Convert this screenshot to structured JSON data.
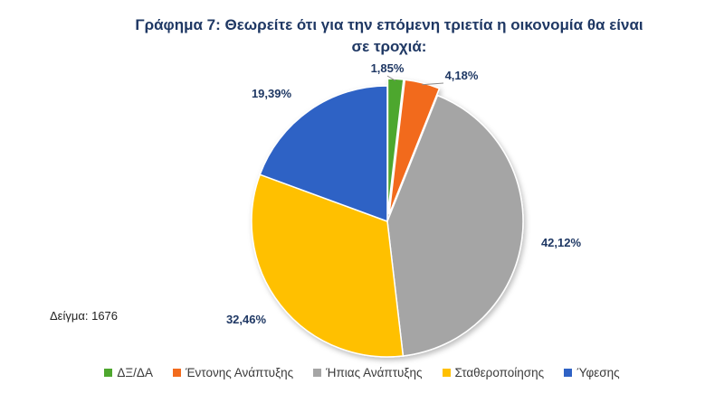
{
  "chart_data": {
    "type": "pie",
    "title": "Γράφημα 7: Θεωρείτε ότι για την επόμενη τριετία η οικονομία θα είναι σε τροχιά:",
    "categories": [
      "ΔΞ/ΔΑ",
      "Έντονης Ανάπτυξης",
      "Ήπιας Ανάπτυξης",
      "Σταθεροποίησης",
      "Ύφεσης"
    ],
    "values": [
      1.85,
      4.18,
      42.12,
      32.46,
      19.39
    ],
    "labels": [
      "1,85%",
      "4,18%",
      "42,12%",
      "32,46%",
      "19,39%"
    ],
    "colors": [
      "#4ea72e",
      "#f26b1d",
      "#a5a5a5",
      "#ffc000",
      "#2f62c5"
    ],
    "legend_position": "bottom"
  },
  "sample_note": "Δείγμα: 1676"
}
